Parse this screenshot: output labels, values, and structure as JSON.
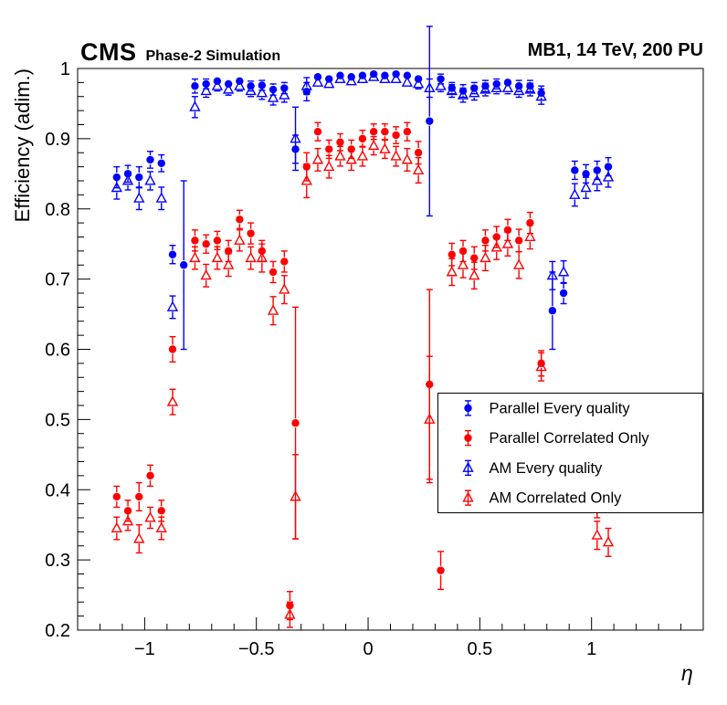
{
  "header": {
    "experiment": "CMS",
    "subtitle": "Phase-2 Simulation",
    "right_label": "MB1, 14 TeV, 200 PU"
  },
  "chart_data": {
    "type": "scatter",
    "title": "",
    "xlabel": "η",
    "ylabel": "Efficiency (adim.)",
    "xlim": [
      -1.3,
      1.5
    ],
    "ylim": [
      0.2,
      1.0
    ],
    "grid": false,
    "legend_position": "middle-right",
    "x_major_ticks": [
      -1,
      -0.5,
      0,
      0.5,
      1
    ],
    "x_tick_labels": [
      "−1",
      "−0.5",
      "0",
      "0.5",
      "1"
    ],
    "y_major_ticks": [
      0.2,
      0.3,
      0.4,
      0.5,
      0.6,
      0.7,
      0.8,
      0.9,
      1.0
    ],
    "y_tick_labels": [
      "0.2",
      "0.3",
      "0.4",
      "0.5",
      "0.6",
      "0.7",
      "0.8",
      "0.9",
      "1"
    ],
    "colors": {
      "blue": "#0000ff",
      "red": "#ff0000"
    },
    "series": [
      {
        "id": "parallel-every-quality",
        "name": "Parallel Every quality",
        "marker": "circle",
        "color": "#0000ff",
        "points": [
          [
            -1.125,
            0.845,
            0.015
          ],
          [
            -1.075,
            0.85,
            0.012
          ],
          [
            -1.025,
            0.845,
            0.015
          ],
          [
            -0.975,
            0.87,
            0.012
          ],
          [
            -0.925,
            0.865,
            0.012
          ],
          [
            -0.875,
            0.735,
            0.013
          ],
          [
            -0.825,
            0.72,
            0.12
          ],
          [
            -0.775,
            0.975,
            0.01
          ],
          [
            -0.725,
            0.978,
            0.007
          ],
          [
            -0.675,
            0.982,
            0.006
          ],
          [
            -0.625,
            0.978,
            0.006
          ],
          [
            -0.575,
            0.982,
            0.006
          ],
          [
            -0.525,
            0.975,
            0.007
          ],
          [
            -0.475,
            0.976,
            0.007
          ],
          [
            -0.425,
            0.97,
            0.008
          ],
          [
            -0.375,
            0.972,
            0.008
          ],
          [
            -0.325,
            0.885,
            0.02
          ],
          [
            -0.275,
            0.967,
            0.013
          ],
          [
            -0.225,
            0.988,
            0.005
          ],
          [
            -0.175,
            0.985,
            0.005
          ],
          [
            -0.125,
            0.99,
            0.004
          ],
          [
            -0.075,
            0.988,
            0.004
          ],
          [
            -0.025,
            0.99,
            0.004
          ],
          [
            0.025,
            0.992,
            0.003
          ],
          [
            0.075,
            0.99,
            0.004
          ],
          [
            0.125,
            0.992,
            0.003
          ],
          [
            0.175,
            0.99,
            0.004
          ],
          [
            0.225,
            0.985,
            0.006
          ],
          [
            0.275,
            0.925,
            0.135
          ],
          [
            0.325,
            0.985,
            0.007
          ],
          [
            0.375,
            0.972,
            0.008
          ],
          [
            0.425,
            0.968,
            0.009
          ],
          [
            0.475,
            0.972,
            0.008
          ],
          [
            0.525,
            0.975,
            0.008
          ],
          [
            0.575,
            0.978,
            0.007
          ],
          [
            0.625,
            0.98,
            0.006
          ],
          [
            0.675,
            0.975,
            0.008
          ],
          [
            0.725,
            0.975,
            0.008
          ],
          [
            0.775,
            0.965,
            0.01
          ],
          [
            0.825,
            0.655,
            0.055
          ],
          [
            0.875,
            0.68,
            0.015
          ],
          [
            0.925,
            0.855,
            0.013
          ],
          [
            0.975,
            0.85,
            0.013
          ],
          [
            1.025,
            0.855,
            0.013
          ],
          [
            1.075,
            0.86,
            0.013
          ]
        ]
      },
      {
        "id": "parallel-correlated-only",
        "name": "Parallel Correlated Only",
        "marker": "circle",
        "color": "#ff0000",
        "points": [
          [
            -1.125,
            0.39,
            0.015
          ],
          [
            -1.075,
            0.37,
            0.015
          ],
          [
            -1.025,
            0.39,
            0.02
          ],
          [
            -0.975,
            0.42,
            0.015
          ],
          [
            -0.925,
            0.37,
            0.015
          ],
          [
            -0.875,
            0.6,
            0.018
          ],
          [
            -0.775,
            0.755,
            0.015
          ],
          [
            -0.725,
            0.75,
            0.013
          ],
          [
            -0.675,
            0.755,
            0.013
          ],
          [
            -0.625,
            0.74,
            0.015
          ],
          [
            -0.575,
            0.785,
            0.013
          ],
          [
            -0.525,
            0.765,
            0.015
          ],
          [
            -0.475,
            0.74,
            0.015
          ],
          [
            -0.425,
            0.71,
            0.015
          ],
          [
            -0.375,
            0.725,
            0.015
          ],
          [
            -0.35,
            0.235,
            0.02
          ],
          [
            -0.325,
            0.495,
            0.165
          ],
          [
            -0.275,
            0.86,
            0.02
          ],
          [
            -0.225,
            0.91,
            0.013
          ],
          [
            -0.175,
            0.885,
            0.013
          ],
          [
            -0.125,
            0.895,
            0.012
          ],
          [
            -0.075,
            0.885,
            0.013
          ],
          [
            -0.025,
            0.9,
            0.012
          ],
          [
            0.025,
            0.91,
            0.011
          ],
          [
            0.075,
            0.91,
            0.011
          ],
          [
            0.125,
            0.905,
            0.012
          ],
          [
            0.175,
            0.91,
            0.013
          ],
          [
            0.225,
            0.88,
            0.016
          ],
          [
            0.275,
            0.55,
            0.135
          ],
          [
            0.325,
            0.285,
            0.027
          ],
          [
            0.375,
            0.735,
            0.016
          ],
          [
            0.425,
            0.74,
            0.015
          ],
          [
            0.475,
            0.73,
            0.016
          ],
          [
            0.525,
            0.755,
            0.015
          ],
          [
            0.575,
            0.76,
            0.015
          ],
          [
            0.625,
            0.77,
            0.015
          ],
          [
            0.675,
            0.755,
            0.016
          ],
          [
            0.725,
            0.78,
            0.015
          ],
          [
            0.775,
            0.58,
            0.018
          ],
          [
            0.925,
            0.385,
            0.015
          ],
          [
            0.975,
            0.39,
            0.013
          ],
          [
            1.025,
            0.375,
            0.015
          ],
          [
            1.075,
            0.39,
            0.015
          ]
        ]
      },
      {
        "id": "am-every-quality",
        "name": "AM Every quality",
        "marker": "triangle",
        "color": "#0000ff",
        "points": [
          [
            -1.125,
            0.83,
            0.016
          ],
          [
            -1.075,
            0.84,
            0.013
          ],
          [
            -1.025,
            0.815,
            0.016
          ],
          [
            -0.975,
            0.84,
            0.013
          ],
          [
            -0.925,
            0.815,
            0.016
          ],
          [
            -0.875,
            0.66,
            0.016
          ],
          [
            -0.775,
            0.945,
            0.015
          ],
          [
            -0.725,
            0.968,
            0.009
          ],
          [
            -0.675,
            0.975,
            0.007
          ],
          [
            -0.625,
            0.97,
            0.008
          ],
          [
            -0.575,
            0.975,
            0.007
          ],
          [
            -0.525,
            0.968,
            0.008
          ],
          [
            -0.475,
            0.965,
            0.009
          ],
          [
            -0.425,
            0.958,
            0.01
          ],
          [
            -0.375,
            0.962,
            0.01
          ],
          [
            -0.325,
            0.9,
            0.045
          ],
          [
            -0.275,
            0.975,
            0.012
          ],
          [
            -0.225,
            0.98,
            0.006
          ],
          [
            -0.175,
            0.978,
            0.006
          ],
          [
            -0.125,
            0.985,
            0.005
          ],
          [
            -0.075,
            0.982,
            0.005
          ],
          [
            -0.025,
            0.985,
            0.005
          ],
          [
            0.025,
            0.988,
            0.004
          ],
          [
            0.075,
            0.985,
            0.005
          ],
          [
            0.125,
            0.985,
            0.005
          ],
          [
            0.175,
            0.98,
            0.006
          ],
          [
            0.225,
            0.978,
            0.007
          ],
          [
            0.275,
            0.972,
            0.013
          ],
          [
            0.325,
            0.975,
            0.008
          ],
          [
            0.375,
            0.968,
            0.009
          ],
          [
            0.425,
            0.962,
            0.01
          ],
          [
            0.475,
            0.965,
            0.01
          ],
          [
            0.525,
            0.97,
            0.009
          ],
          [
            0.575,
            0.972,
            0.008
          ],
          [
            0.625,
            0.972,
            0.008
          ],
          [
            0.675,
            0.968,
            0.009
          ],
          [
            0.725,
            0.97,
            0.009
          ],
          [
            0.775,
            0.96,
            0.011
          ],
          [
            0.825,
            0.705,
            0.02
          ],
          [
            0.875,
            0.71,
            0.016
          ],
          [
            0.925,
            0.82,
            0.016
          ],
          [
            0.975,
            0.83,
            0.015
          ],
          [
            1.025,
            0.84,
            0.014
          ],
          [
            1.075,
            0.845,
            0.014
          ]
        ]
      },
      {
        "id": "am-correlated-only",
        "name": "AM Correlated Only",
        "marker": "triangle",
        "color": "#ff0000",
        "points": [
          [
            -1.125,
            0.345,
            0.016
          ],
          [
            -1.075,
            0.355,
            0.013
          ],
          [
            -1.025,
            0.33,
            0.02
          ],
          [
            -0.975,
            0.36,
            0.015
          ],
          [
            -0.925,
            0.345,
            0.016
          ],
          [
            -0.875,
            0.525,
            0.018
          ],
          [
            -0.775,
            0.73,
            0.016
          ],
          [
            -0.725,
            0.705,
            0.016
          ],
          [
            -0.675,
            0.73,
            0.016
          ],
          [
            -0.625,
            0.72,
            0.016
          ],
          [
            -0.575,
            0.755,
            0.015
          ],
          [
            -0.525,
            0.73,
            0.016
          ],
          [
            -0.475,
            0.73,
            0.02
          ],
          [
            -0.425,
            0.655,
            0.02
          ],
          [
            -0.375,
            0.685,
            0.02
          ],
          [
            -0.35,
            0.222,
            0.018
          ],
          [
            -0.325,
            0.39,
            0.06
          ],
          [
            -0.275,
            0.84,
            0.024
          ],
          [
            -0.225,
            0.87,
            0.016
          ],
          [
            -0.175,
            0.86,
            0.016
          ],
          [
            -0.125,
            0.875,
            0.014
          ],
          [
            -0.075,
            0.87,
            0.015
          ],
          [
            -0.025,
            0.875,
            0.014
          ],
          [
            0.025,
            0.89,
            0.013
          ],
          [
            0.075,
            0.885,
            0.013
          ],
          [
            0.125,
            0.875,
            0.014
          ],
          [
            0.175,
            0.87,
            0.016
          ],
          [
            0.225,
            0.855,
            0.018
          ],
          [
            0.275,
            0.5,
            0.09
          ],
          [
            0.375,
            0.71,
            0.019
          ],
          [
            0.425,
            0.72,
            0.018
          ],
          [
            0.475,
            0.705,
            0.019
          ],
          [
            0.525,
            0.73,
            0.018
          ],
          [
            0.575,
            0.745,
            0.017
          ],
          [
            0.625,
            0.75,
            0.017
          ],
          [
            0.675,
            0.72,
            0.019
          ],
          [
            0.725,
            0.76,
            0.017
          ],
          [
            0.775,
            0.575,
            0.02
          ],
          [
            0.925,
            0.39,
            0.016
          ],
          [
            0.975,
            0.385,
            0.014
          ],
          [
            1.025,
            0.335,
            0.02
          ],
          [
            1.075,
            0.325,
            0.02
          ]
        ]
      }
    ]
  }
}
